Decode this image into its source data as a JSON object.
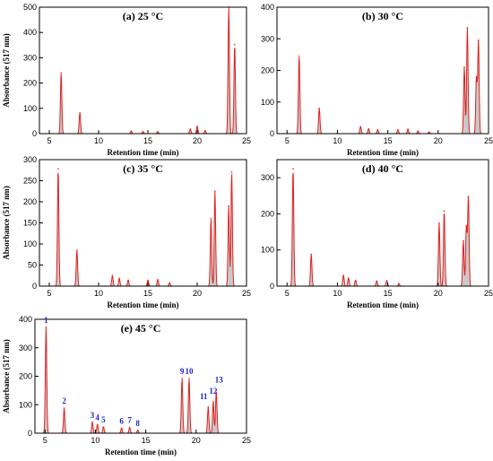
{
  "colors": {
    "line": "#e0201e",
    "fill": "#c9c9c9",
    "axis": "#000000",
    "peak_label": "#1f1fd0"
  },
  "chart_data": [
    {
      "type": "area",
      "title": "(a) 25 °C",
      "xlabel": "Retention time (min)",
      "ylabel": "Absorbance (517 nm)",
      "xlim": [
        4,
        25
      ],
      "ylim": [
        0,
        500
      ],
      "xticks": [
        5,
        10,
        15,
        20,
        25
      ],
      "yticks": [
        0,
        100,
        200,
        300,
        400,
        500
      ],
      "x": [
        6.2,
        8.1,
        13.3,
        14.5,
        16.0,
        19.3,
        20.0,
        20.8,
        23.2,
        23.8
      ],
      "y": [
        240,
        82,
        10,
        8,
        8,
        18,
        28,
        12,
        498,
        352
      ]
    },
    {
      "type": "area",
      "title": "(b) 30 °C",
      "xlabel": "Retention time (min)",
      "ylabel": "",
      "xlim": [
        4,
        25
      ],
      "ylim": [
        0,
        400
      ],
      "xticks": [
        5,
        10,
        15,
        20,
        25
      ],
      "yticks": [
        0,
        100,
        200,
        300,
        400
      ],
      "x": [
        6.2,
        8.2,
        12.3,
        13.1,
        14.0,
        16.0,
        17.0,
        18.0,
        19.1,
        22.6,
        22.9,
        23.8,
        24.0
      ],
      "y": [
        245,
        80,
        22,
        15,
        12,
        12,
        14,
        8,
        5,
        210,
        335,
        178,
        295
      ]
    },
    {
      "type": "area",
      "title": "(c) 35 °C",
      "xlabel": "Retention time (min)",
      "ylabel": "Absorbance (517 nm)",
      "xlim": [
        4,
        25
      ],
      "ylim": [
        0,
        300
      ],
      "xticks": [
        5,
        10,
        15,
        20,
        25
      ],
      "yticks": [
        0,
        50,
        100,
        150,
        200,
        250,
        300
      ],
      "x": [
        5.9,
        7.8,
        11.4,
        12.1,
        13.0,
        15.0,
        16.0,
        17.2,
        21.4,
        21.8,
        23.2,
        23.5
      ],
      "y": [
        278,
        85,
        25,
        18,
        14,
        14,
        15,
        8,
        160,
        225,
        190,
        270
      ]
    },
    {
      "type": "area",
      "title": "(d) 40 °C",
      "xlabel": "Retention time (min)",
      "ylabel": "",
      "xlim": [
        4,
        25
      ],
      "ylim": [
        0,
        350
      ],
      "xticks": [
        5,
        10,
        15,
        20,
        25
      ],
      "yticks": [
        0,
        100,
        200,
        300
      ],
      "x": [
        5.6,
        7.4,
        10.6,
        11.1,
        11.8,
        13.9,
        14.9,
        16.1,
        20.1,
        20.6,
        22.5,
        22.8,
        23.0
      ],
      "y": [
        325,
        88,
        30,
        22,
        16,
        14,
        15,
        7,
        175,
        208,
        125,
        165,
        248
      ]
    },
    {
      "type": "area",
      "title": "(e) 45 °C",
      "xlabel": "Retention time (min)",
      "ylabel": "Absorbance (517 nm)",
      "xlim": [
        4,
        25
      ],
      "ylim": [
        0,
        400
      ],
      "xticks": [
        5,
        10,
        15,
        20,
        25
      ],
      "yticks": [
        0,
        100,
        200,
        300,
        400
      ],
      "x": [
        5.1,
        6.9,
        9.7,
        10.2,
        10.8,
        12.6,
        13.4,
        14.2,
        18.6,
        19.3,
        21.2,
        21.7,
        22.0
      ],
      "y": [
        372,
        88,
        38,
        30,
        22,
        18,
        20,
        10,
        192,
        192,
        92,
        110,
        150
      ],
      "peak_labels": [
        "1",
        "2",
        "3",
        "4",
        "5",
        "6",
        "7",
        "8",
        "9",
        "10",
        "11",
        "12",
        "13"
      ]
    }
  ]
}
